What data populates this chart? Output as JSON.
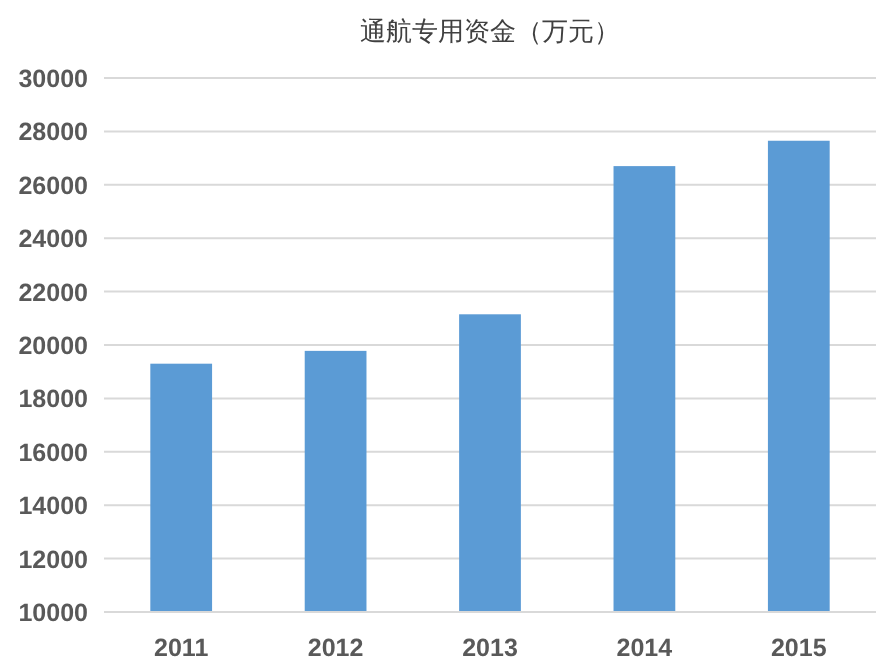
{
  "chart_data": {
    "type": "bar",
    "title": "通航专用资金（万元）",
    "categories": [
      "2011",
      "2012",
      "2013",
      "2014",
      "2015"
    ],
    "values": [
      19300,
      19780,
      21150,
      26700,
      27650
    ],
    "color": "#5b9bd5",
    "ylim": [
      10000,
      30000
    ],
    "yticks": [
      10000,
      12000,
      14000,
      16000,
      18000,
      20000,
      22000,
      24000,
      26000,
      28000,
      30000
    ],
    "grid": "y"
  }
}
